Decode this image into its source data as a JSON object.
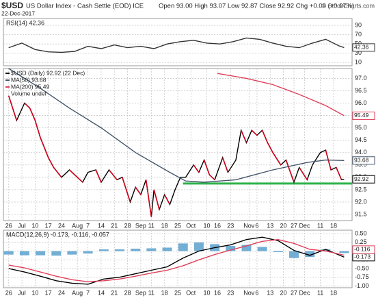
{
  "header": {
    "symbol": "$USD",
    "name": "US Dollar Index - Cash Settle (EOD) ICE",
    "date": "22-Dec-2017",
    "quote": "Open 93.00 High 93.07 Low 92.87 Close 92.92 Chg +0.06 (+0.07%)",
    "credit": "© StockCharts.com"
  },
  "chart_data": [
    {
      "type": "line",
      "title": "RSI(14) 42.36",
      "xlim": [
        -2,
        130
      ],
      "ylim": [
        3,
        105
      ],
      "yticks": [
        10,
        30,
        50,
        70,
        90
      ],
      "grid": true,
      "series": [
        {
          "color": "#333333",
          "value_box": true,
          "x": [
            0,
            5,
            10,
            15,
            20,
            25,
            30,
            35,
            40,
            45,
            50,
            55,
            60,
            65,
            70,
            75,
            80,
            85,
            90,
            95,
            100,
            105,
            110,
            115,
            120,
            125,
            127
          ],
          "values": [
            42,
            52,
            38,
            33,
            32,
            34,
            45,
            40,
            48,
            42,
            45,
            40,
            50,
            55,
            58,
            52,
            50,
            55,
            63,
            60,
            52,
            45,
            42,
            52,
            60,
            46,
            42.36
          ]
        }
      ]
    },
    {
      "type": "line",
      "xlim": [
        -2,
        130
      ],
      "ylim": [
        91.25,
        97.4
      ],
      "grid": true,
      "yticks": [
        {
          "value": 91.5,
          "label": "91.5"
        },
        {
          "value": 92,
          "label": "92.0"
        },
        92.5,
        {
          "value": 93,
          "label": "93.0"
        },
        93.5,
        {
          "value": 94,
          "label": "94.0"
        },
        94.5,
        {
          "value": 95,
          "label": "95.0"
        },
        95.5,
        {
          "value": 96,
          "label": "96.0"
        },
        96.5,
        {
          "value": 97,
          "label": "97.0"
        }
      ],
      "xticks": [
        {
          "value": 0,
          "label": "26"
        },
        {
          "value": 5,
          "label": "Jul"
        },
        {
          "value": 10,
          "label": "10"
        },
        {
          "value": 15,
          "label": "17"
        },
        {
          "value": 20,
          "label": "24"
        },
        {
          "value": 26,
          "label": "Aug"
        },
        {
          "value": 30,
          "label": "7"
        },
        {
          "value": 35,
          "label": "14"
        },
        {
          "value": 40,
          "label": "21"
        },
        {
          "value": 45,
          "label": "28"
        },
        {
          "value": 50,
          "label": "Sep"
        },
        {
          "value": 54,
          "label": "11"
        },
        {
          "value": 59,
          "label": "18"
        },
        {
          "value": 64,
          "label": "25"
        },
        {
          "value": 69,
          "label": "Oct"
        },
        {
          "value": 75,
          "label": "10"
        },
        {
          "value": 79,
          "label": "16"
        },
        {
          "value": 84,
          "label": "23"
        },
        {
          "value": 91,
          "label": "Nov"
        },
        {
          "value": 94,
          "label": "6"
        },
        {
          "value": 99,
          "label": "13"
        },
        {
          "value": 104,
          "label": "20"
        },
        {
          "value": 108,
          "label": "27"
        },
        {
          "value": 112,
          "label": "Dec"
        },
        {
          "value": 118,
          "label": "11"
        },
        {
          "value": 123,
          "label": "18"
        }
      ],
      "series": [
        {
          "name": "$USD (Daily) 92.92 (22 Dec)",
          "color": "#000000",
          "down_color": "#d0021b",
          "value_box": true,
          "x": [
            0,
            3,
            6,
            8,
            10,
            12,
            15,
            17,
            20,
            23,
            25,
            28,
            30,
            33,
            35,
            38,
            41,
            43,
            46,
            48,
            50,
            52,
            54,
            55,
            57,
            59,
            61,
            63,
            65,
            67,
            70,
            72,
            74,
            76,
            78,
            81,
            83,
            86,
            88,
            90,
            92,
            94,
            96,
            98,
            100,
            103,
            105,
            108,
            110,
            113,
            115,
            118,
            120,
            122,
            124,
            126,
            127
          ],
          "values": [
            96.3,
            95.3,
            96.0,
            95.8,
            95.3,
            94.6,
            93.8,
            93.4,
            93.0,
            93.3,
            93.1,
            92.8,
            93.2,
            93.3,
            92.8,
            93.3,
            92.9,
            93.0,
            92.0,
            92.6,
            92.3,
            92.9,
            91.4,
            92.5,
            91.7,
            92.3,
            91.9,
            92.5,
            93.0,
            93.0,
            93.5,
            93.2,
            93.7,
            93.1,
            92.9,
            93.8,
            93.2,
            93.7,
            94.9,
            94.4,
            94.9,
            94.7,
            94.9,
            94.4,
            94.0,
            93.5,
            93.7,
            92.8,
            93.4,
            92.9,
            93.5,
            94.0,
            94.1,
            93.3,
            93.4,
            92.9,
            92.92
          ]
        },
        {
          "name": "MA(50) 93.68",
          "color": "#44556b",
          "value_box": true,
          "x": [
            0,
            12,
            23,
            35,
            48,
            61,
            67,
            74,
            86,
            100,
            113,
            120,
            127
          ],
          "values": [
            97.4,
            96.6,
            95.8,
            95.0,
            94.0,
            93.2,
            92.85,
            92.8,
            92.9,
            93.3,
            93.6,
            93.7,
            93.68
          ]
        },
        {
          "name": "MA(200) 95.49",
          "color": "#e0405a",
          "value_box": true,
          "x": [
            79,
            90,
            100,
            110,
            120,
            127
          ],
          "values": [
            97.2,
            97.0,
            96.75,
            96.35,
            95.9,
            95.49
          ]
        }
      ],
      "legend_extra": "Volume undef",
      "support_line": {
        "value": 92.75,
        "x": [
          66,
          130
        ],
        "color": "#2db34a"
      }
    },
    {
      "type": "line",
      "title": "MACD(12,26,9) -0.173, -0.116, -0.057",
      "xlim": [
        -2,
        130
      ],
      "ylim": [
        -1.05,
        0.6
      ],
      "grid": true,
      "yticks": [
        {
          "value": -1,
          "label": "-1.00"
        },
        {
          "value": -0.75,
          "label": "-0.75"
        },
        {
          "value": -0.5,
          "label": "-0.50"
        },
        {
          "value": -0.25,
          "label": "-0.25"
        },
        {
          "value": 0,
          "label": "0.00"
        },
        {
          "value": 0.25,
          "label": "0.25"
        },
        {
          "value": 0.5,
          "label": "0.50"
        }
      ],
      "xticks": [
        {
          "value": 0,
          "label": "26"
        },
        {
          "value": 5,
          "label": "Jul"
        },
        {
          "value": 10,
          "label": "10"
        },
        {
          "value": 15,
          "label": "17"
        },
        {
          "value": 20,
          "label": "24"
        },
        {
          "value": 26,
          "label": "Aug"
        },
        {
          "value": 30,
          "label": "7"
        },
        {
          "value": 35,
          "label": "14"
        },
        {
          "value": 40,
          "label": "21"
        },
        {
          "value": 45,
          "label": "28"
        },
        {
          "value": 50,
          "label": "Sep"
        },
        {
          "value": 54,
          "label": "11"
        },
        {
          "value": 59,
          "label": "18"
        },
        {
          "value": 64,
          "label": "25"
        },
        {
          "value": 69,
          "label": "Oct"
        },
        {
          "value": 75,
          "label": "10"
        },
        {
          "value": 79,
          "label": "16"
        },
        {
          "value": 84,
          "label": "23"
        },
        {
          "value": 91,
          "label": "Nov"
        },
        {
          "value": 94,
          "label": "6"
        },
        {
          "value": 99,
          "label": "13"
        },
        {
          "value": 104,
          "label": "20"
        },
        {
          "value": 108,
          "label": "27"
        },
        {
          "value": 112,
          "label": "Dec"
        },
        {
          "value": 118,
          "label": "11"
        },
        {
          "value": 123,
          "label": "18"
        }
      ],
      "series": [
        {
          "type": "bar",
          "color": "#5aa0cc",
          "x": [
            0,
            6,
            12,
            18,
            24,
            30,
            36,
            42,
            48,
            54,
            60,
            66,
            72,
            78,
            84,
            90,
            96,
            102,
            108,
            114,
            120,
            127
          ],
          "values": [
            -0.1,
            -0.12,
            -0.12,
            -0.13,
            -0.1,
            -0.07,
            0.05,
            0.05,
            0.07,
            0.08,
            0.1,
            0.22,
            0.25,
            0.2,
            0.15,
            0.18,
            0.12,
            -0.03,
            -0.2,
            -0.17,
            0.05,
            -0.057
          ]
        },
        {
          "color": "#000000",
          "value_box": true,
          "x": [
            0,
            6,
            12,
            18,
            24,
            30,
            36,
            42,
            48,
            54,
            60,
            66,
            72,
            78,
            84,
            90,
            96,
            102,
            108,
            114,
            120,
            127
          ],
          "values": [
            -0.5,
            -0.6,
            -0.72,
            -0.85,
            -0.92,
            -0.95,
            -0.8,
            -0.75,
            -0.65,
            -0.55,
            -0.45,
            -0.2,
            0.0,
            0.1,
            0.18,
            0.33,
            0.4,
            0.3,
            0.02,
            -0.12,
            0.05,
            -0.173
          ]
        },
        {
          "color": "#e0405a",
          "value_box": true,
          "x": [
            0,
            6,
            12,
            18,
            24,
            30,
            36,
            42,
            48,
            54,
            60,
            66,
            72,
            78,
            84,
            90,
            96,
            102,
            108,
            114,
            120,
            127
          ],
          "values": [
            -0.4,
            -0.48,
            -0.6,
            -0.72,
            -0.82,
            -0.88,
            -0.85,
            -0.8,
            -0.72,
            -0.63,
            -0.55,
            -0.42,
            -0.25,
            -0.1,
            0.03,
            0.15,
            0.28,
            0.33,
            0.22,
            0.05,
            0.0,
            -0.116
          ]
        }
      ]
    }
  ]
}
